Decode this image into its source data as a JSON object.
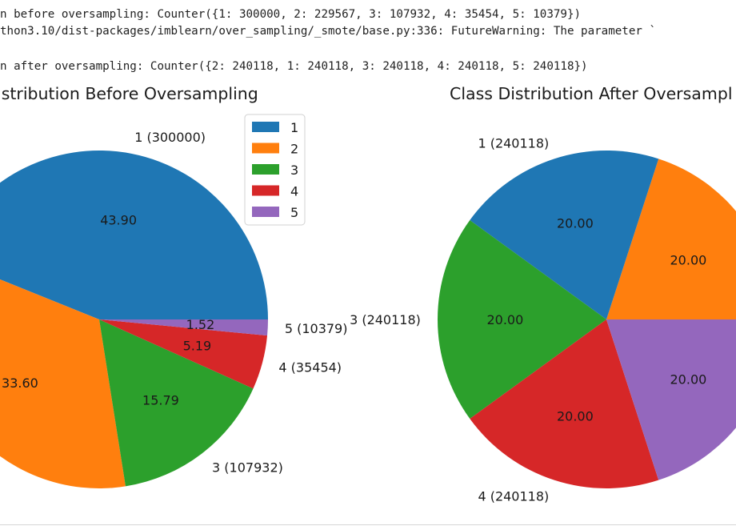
{
  "console": {
    "lines": [
      "n before oversampling: Counter({1: 300000, 2: 229567, 3: 107932, 4: 35454, 5: 10379})",
      "thon3.10/dist-packages/imblearn/over_sampling/_smote/base.py:336: FutureWarning: The parameter `",
      "",
      "n after oversampling: Counter({2: 240118, 1: 240118, 3: 240118, 4: 240118, 5: 240118})"
    ]
  },
  "colors": {
    "1": "#1f77b4",
    "2": "#ff7f0e",
    "3": "#2ca02c",
    "4": "#d62728",
    "5": "#9467bd"
  },
  "chart_data": [
    {
      "type": "pie",
      "title": "istribution Before Oversampling",
      "categories": [
        "1",
        "2",
        "3",
        "4",
        "5"
      ],
      "values": [
        300000,
        229567,
        107932,
        35454,
        10379
      ],
      "labels": [
        "1 (300000)",
        "2",
        "3 (107932)",
        "4 (35454)",
        "5 (10379)"
      ],
      "pct_labels": [
        "43.90",
        "33.60",
        "15.79",
        "5.19",
        "1.52"
      ],
      "legend": {
        "entries": [
          "1",
          "2",
          "3",
          "4",
          "5"
        ],
        "placement": "top-right"
      }
    },
    {
      "type": "pie",
      "title": "Class Distribution After Oversampl",
      "categories": [
        "2",
        "1",
        "3",
        "4",
        "5"
      ],
      "values": [
        240118,
        240118,
        240118,
        240118,
        240118
      ],
      "labels": [
        "",
        "1 (240118)",
        "3 (240118)",
        "4 (240118)",
        ""
      ],
      "pct_labels": [
        "20.00",
        "20.00",
        "20.00",
        "20.00",
        "20.00"
      ]
    }
  ]
}
